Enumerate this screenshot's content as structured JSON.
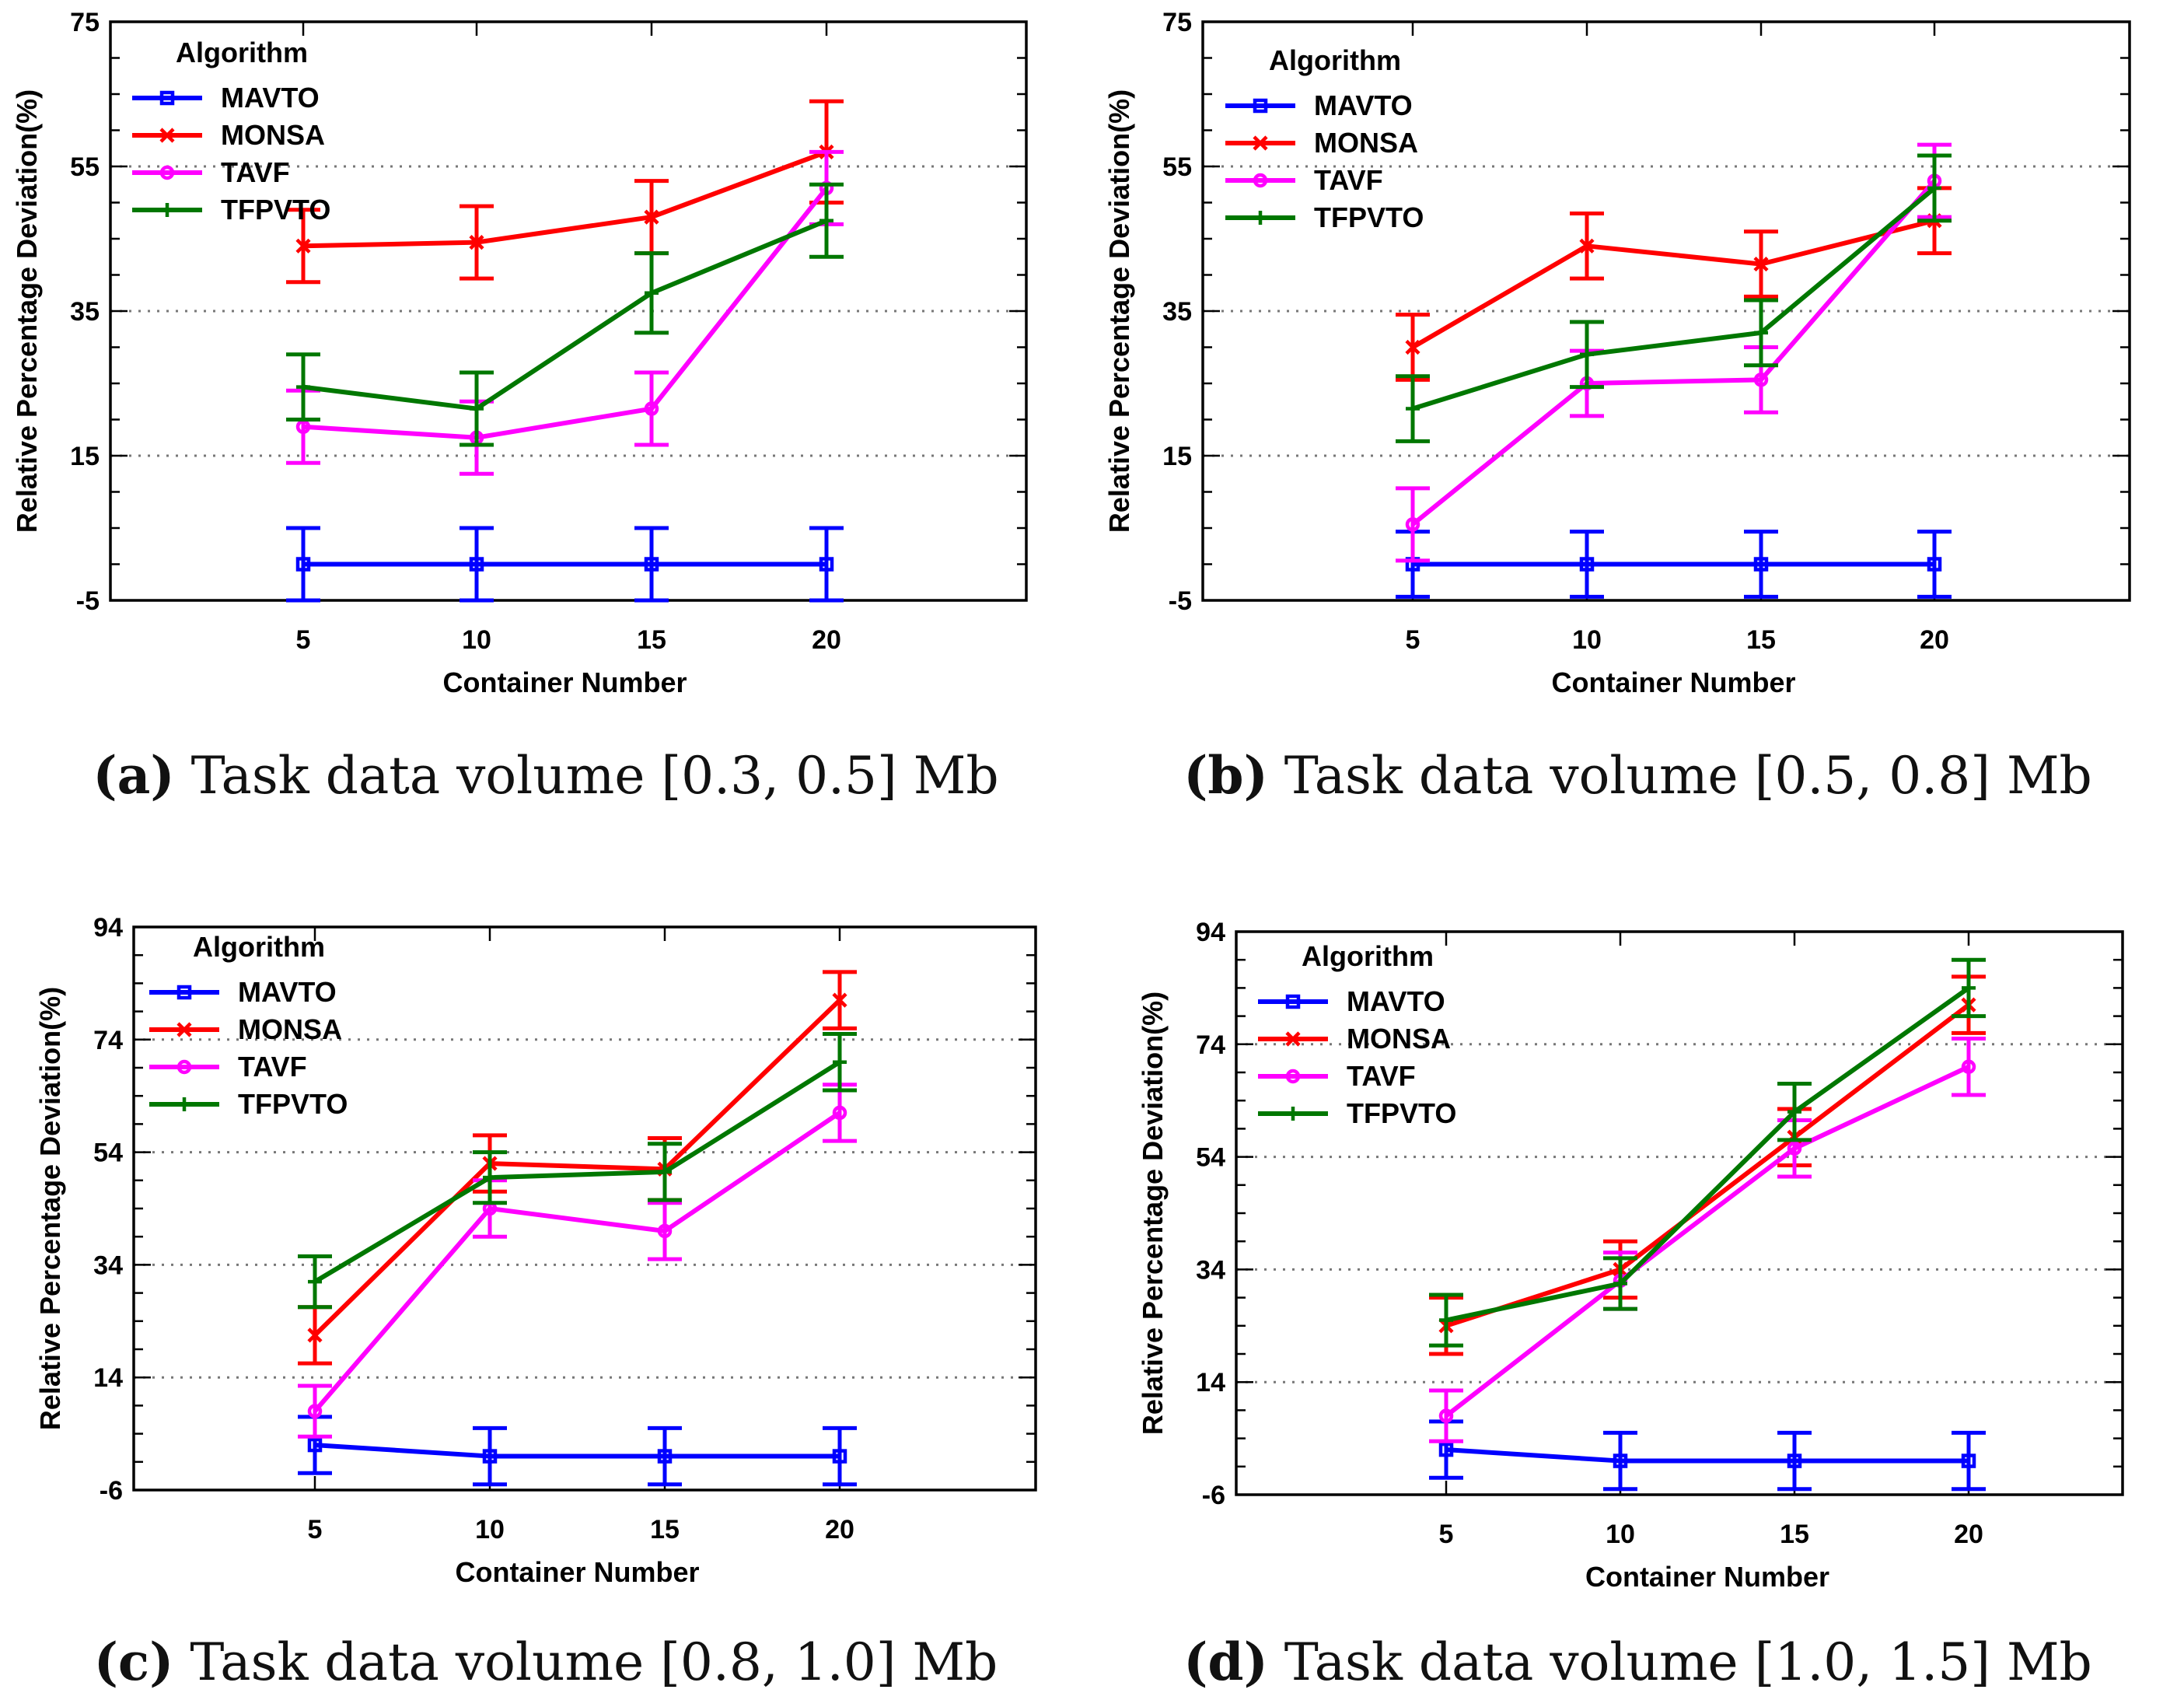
{
  "figure": {
    "chart_data": [
      {
        "id": "a",
        "type": "line",
        "caption_letter": "(a)",
        "caption_text": " Task data volume [0.3, 0.5] Mb",
        "xlabel": "Container Number",
        "ylabel": "Relative Percentage Deviation(%)",
        "categories": [
          "5",
          "10",
          "15",
          "20"
        ],
        "yticks": [
          "75",
          "55",
          "35",
          "15",
          "-5"
        ],
        "ytick_values": [
          75,
          55,
          35,
          15,
          -5
        ],
        "ylim": [
          -5,
          75
        ],
        "grid": "horizontal dotted",
        "legend_title": "Algorithm",
        "legend_position": "top-left",
        "series": [
          {
            "name": "MAVTO",
            "color": "#0000ff",
            "marker": "square",
            "values": [
              0,
              0,
              0,
              0
            ],
            "err": [
              5,
              5,
              5,
              5
            ]
          },
          {
            "name": "MONSA",
            "color": "#ff0000",
            "marker": "x",
            "values": [
              44,
              44.5,
              48,
              57
            ],
            "err": [
              5,
              5,
              5,
              7
            ]
          },
          {
            "name": "TAVF",
            "color": "#ff00ff",
            "marker": "circle",
            "values": [
              19,
              17.5,
              21.5,
              52
            ],
            "err": [
              5,
              5,
              5,
              5
            ]
          },
          {
            "name": "TFPVTO",
            "color": "#007700",
            "marker": "plus",
            "values": [
              24.5,
              21.5,
              37.5,
              47.5
            ],
            "err": [
              4.5,
              5,
              5.5,
              5
            ]
          }
        ]
      },
      {
        "id": "b",
        "type": "line",
        "caption_letter": "(b)",
        "caption_text": " Task data volume [0.5, 0.8] Mb",
        "xlabel": "Container Number",
        "ylabel": "Relative Percentage Deviation(%)",
        "categories": [
          "5",
          "10",
          "15",
          "20"
        ],
        "yticks": [
          "75",
          "55",
          "35",
          "15",
          "-5"
        ],
        "ytick_values": [
          75,
          55,
          35,
          15,
          -5
        ],
        "ylim": [
          -5,
          75
        ],
        "grid": "horizontal dotted",
        "legend_title": "Algorithm",
        "legend_position": "top-left",
        "series": [
          {
            "name": "MAVTO",
            "color": "#0000ff",
            "marker": "square",
            "values": [
              0,
              0,
              0,
              0
            ],
            "err": [
              4.5,
              4.5,
              4.5,
              4.5
            ]
          },
          {
            "name": "MONSA",
            "color": "#ff0000",
            "marker": "x",
            "values": [
              30,
              44,
              41.5,
              47.5
            ],
            "err": [
              4.5,
              4.5,
              4.5,
              4.5
            ]
          },
          {
            "name": "TAVF",
            "color": "#ff00ff",
            "marker": "circle",
            "values": [
              5.5,
              25,
              25.5,
              53
            ],
            "err": [
              5,
              4.5,
              4.5,
              5
            ]
          },
          {
            "name": "TFPVTO",
            "color": "#007700",
            "marker": "plus",
            "values": [
              21.5,
              29,
              32,
              52
            ],
            "err": [
              4.5,
              4.5,
              4.5,
              4.5
            ]
          }
        ]
      },
      {
        "id": "c",
        "type": "line",
        "caption_letter": "(c)",
        "caption_text": " Task data volume [0.8, 1.0] Mb",
        "xlabel": "Container Number",
        "ylabel": "Relative Percentage Deviation(%)",
        "categories": [
          "5",
          "10",
          "15",
          "20"
        ],
        "yticks": [
          "94",
          "74",
          "54",
          "34",
          "14",
          "-6"
        ],
        "ytick_values": [
          94,
          74,
          54,
          34,
          14,
          -6
        ],
        "ylim": [
          -6,
          94
        ],
        "grid": "horizontal dotted",
        "legend_title": "Algorithm",
        "legend_position": "top-left",
        "series": [
          {
            "name": "MAVTO",
            "color": "#0000ff",
            "marker": "square",
            "values": [
              2,
              0,
              0,
              0
            ],
            "err": [
              5,
              5,
              5,
              5
            ]
          },
          {
            "name": "MONSA",
            "color": "#ff0000",
            "marker": "x",
            "values": [
              21.5,
              52,
              51,
              81
            ],
            "err": [
              5,
              5,
              5.5,
              5
            ]
          },
          {
            "name": "TAVF",
            "color": "#ff00ff",
            "marker": "circle",
            "values": [
              8,
              44,
              40,
              61
            ],
            "err": [
              4.5,
              5,
              5,
              5
            ]
          },
          {
            "name": "TFPVTO",
            "color": "#007700",
            "marker": "plus",
            "values": [
              31,
              49.5,
              50.5,
              70
            ],
            "err": [
              4.5,
              4.5,
              5,
              5
            ]
          }
        ]
      },
      {
        "id": "d",
        "type": "line",
        "caption_letter": "(d)",
        "caption_text": " Task data volume [1.0, 1.5] Mb",
        "xlabel": "Container Number",
        "ylabel": "Relative Percentage Deviation(%)",
        "categories": [
          "5",
          "10",
          "15",
          "20"
        ],
        "yticks": [
          "94",
          "74",
          "54",
          "34",
          "14",
          "-6"
        ],
        "ytick_values": [
          94,
          74,
          54,
          34,
          14,
          -6
        ],
        "ylim": [
          -6,
          94
        ],
        "grid": "horizontal dotted",
        "legend_title": "Algorithm",
        "legend_position": "top-left",
        "series": [
          {
            "name": "MAVTO",
            "color": "#0000ff",
            "marker": "square",
            "values": [
              2,
              0,
              0,
              0
            ],
            "err": [
              5,
              5,
              5,
              5
            ]
          },
          {
            "name": "MONSA",
            "color": "#ff0000",
            "marker": "x",
            "values": [
              24,
              34,
              57.5,
              81
            ],
            "err": [
              5,
              5,
              5,
              5
            ]
          },
          {
            "name": "TAVF",
            "color": "#ff00ff",
            "marker": "circle",
            "values": [
              8,
              32,
              55.5,
              70
            ],
            "err": [
              4.5,
              5,
              5,
              5
            ]
          },
          {
            "name": "TFPVTO",
            "color": "#007700",
            "marker": "plus",
            "values": [
              25,
              31.5,
              62,
              84
            ],
            "err": [
              4.5,
              4.5,
              5,
              5
            ]
          }
        ]
      }
    ]
  }
}
